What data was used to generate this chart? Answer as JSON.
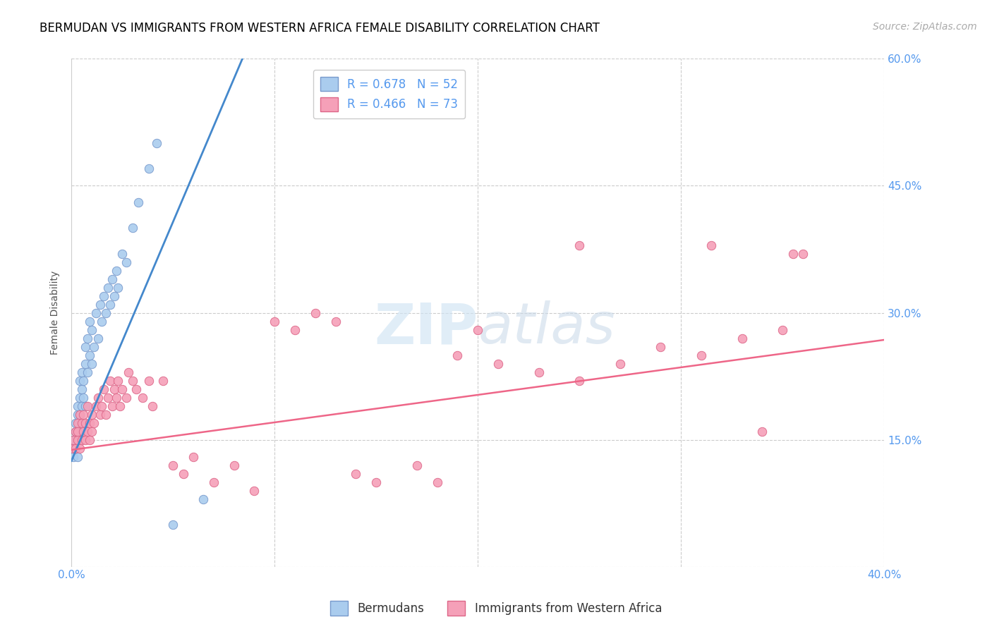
{
  "title": "BERMUDAN VS IMMIGRANTS FROM WESTERN AFRICA FEMALE DISABILITY CORRELATION CHART",
  "source": "Source: ZipAtlas.com",
  "ylabel": "Female Disability",
  "xlim": [
    0.0,
    0.4
  ],
  "ylim": [
    0.0,
    0.6
  ],
  "yticks": [
    0.0,
    0.15,
    0.3,
    0.45,
    0.6
  ],
  "xticks": [
    0.0,
    0.05,
    0.1,
    0.15,
    0.2,
    0.25,
    0.3,
    0.35,
    0.4
  ],
  "grid_color": "#cccccc",
  "background_color": "#ffffff",
  "series1_color": "#aaccee",
  "series1_edge_color": "#7799cc",
  "series2_color": "#f5a0b8",
  "series2_edge_color": "#dd6688",
  "series1_line_color": "#4488cc",
  "series2_line_color": "#ee6688",
  "series1_R": 0.678,
  "series1_N": 52,
  "series2_R": 0.466,
  "series2_N": 73,
  "legend_label1": "Bermudans",
  "legend_label2": "Immigrants from Western Africa",
  "watermark": "ZIPatlas",
  "title_fontsize": 12,
  "axis_label_fontsize": 10,
  "tick_fontsize": 11,
  "legend_fontsize": 12,
  "source_fontsize": 10,
  "tick_color": "#5599ee",
  "series1_x": [
    0.001,
    0.001,
    0.001,
    0.002,
    0.002,
    0.002,
    0.002,
    0.003,
    0.003,
    0.003,
    0.003,
    0.004,
    0.004,
    0.004,
    0.004,
    0.005,
    0.005,
    0.005,
    0.005,
    0.006,
    0.006,
    0.006,
    0.007,
    0.007,
    0.007,
    0.008,
    0.008,
    0.009,
    0.009,
    0.01,
    0.01,
    0.011,
    0.012,
    0.013,
    0.014,
    0.015,
    0.016,
    0.017,
    0.018,
    0.019,
    0.02,
    0.021,
    0.022,
    0.023,
    0.025,
    0.027,
    0.03,
    0.033,
    0.038,
    0.042,
    0.05,
    0.065
  ],
  "series1_y": [
    0.14,
    0.15,
    0.13,
    0.16,
    0.14,
    0.17,
    0.15,
    0.18,
    0.16,
    0.19,
    0.13,
    0.2,
    0.18,
    0.22,
    0.15,
    0.21,
    0.19,
    0.16,
    0.23,
    0.22,
    0.17,
    0.2,
    0.24,
    0.19,
    0.26,
    0.23,
    0.27,
    0.25,
    0.29,
    0.24,
    0.28,
    0.26,
    0.3,
    0.27,
    0.31,
    0.29,
    0.32,
    0.3,
    0.33,
    0.31,
    0.34,
    0.32,
    0.35,
    0.33,
    0.37,
    0.36,
    0.4,
    0.43,
    0.47,
    0.5,
    0.05,
    0.08
  ],
  "series2_x": [
    0.001,
    0.001,
    0.002,
    0.002,
    0.003,
    0.003,
    0.003,
    0.004,
    0.004,
    0.005,
    0.005,
    0.006,
    0.006,
    0.007,
    0.007,
    0.008,
    0.008,
    0.009,
    0.009,
    0.01,
    0.01,
    0.011,
    0.012,
    0.013,
    0.014,
    0.015,
    0.016,
    0.017,
    0.018,
    0.019,
    0.02,
    0.021,
    0.022,
    0.023,
    0.024,
    0.025,
    0.027,
    0.028,
    0.03,
    0.032,
    0.035,
    0.038,
    0.04,
    0.045,
    0.05,
    0.055,
    0.06,
    0.07,
    0.08,
    0.09,
    0.1,
    0.11,
    0.12,
    0.13,
    0.14,
    0.15,
    0.17,
    0.19,
    0.21,
    0.23,
    0.25,
    0.27,
    0.29,
    0.31,
    0.33,
    0.35,
    0.355,
    0.36,
    0.315,
    0.34,
    0.25,
    0.2,
    0.18
  ],
  "series2_y": [
    0.14,
    0.15,
    0.16,
    0.14,
    0.17,
    0.15,
    0.16,
    0.18,
    0.14,
    0.17,
    0.15,
    0.16,
    0.18,
    0.15,
    0.17,
    0.16,
    0.19,
    0.15,
    0.17,
    0.16,
    0.18,
    0.17,
    0.19,
    0.2,
    0.18,
    0.19,
    0.21,
    0.18,
    0.2,
    0.22,
    0.19,
    0.21,
    0.2,
    0.22,
    0.19,
    0.21,
    0.2,
    0.23,
    0.22,
    0.21,
    0.2,
    0.22,
    0.19,
    0.22,
    0.12,
    0.11,
    0.13,
    0.1,
    0.12,
    0.09,
    0.29,
    0.28,
    0.3,
    0.29,
    0.11,
    0.1,
    0.12,
    0.25,
    0.24,
    0.23,
    0.22,
    0.24,
    0.26,
    0.25,
    0.27,
    0.28,
    0.37,
    0.37,
    0.38,
    0.16,
    0.38,
    0.28,
    0.1
  ]
}
